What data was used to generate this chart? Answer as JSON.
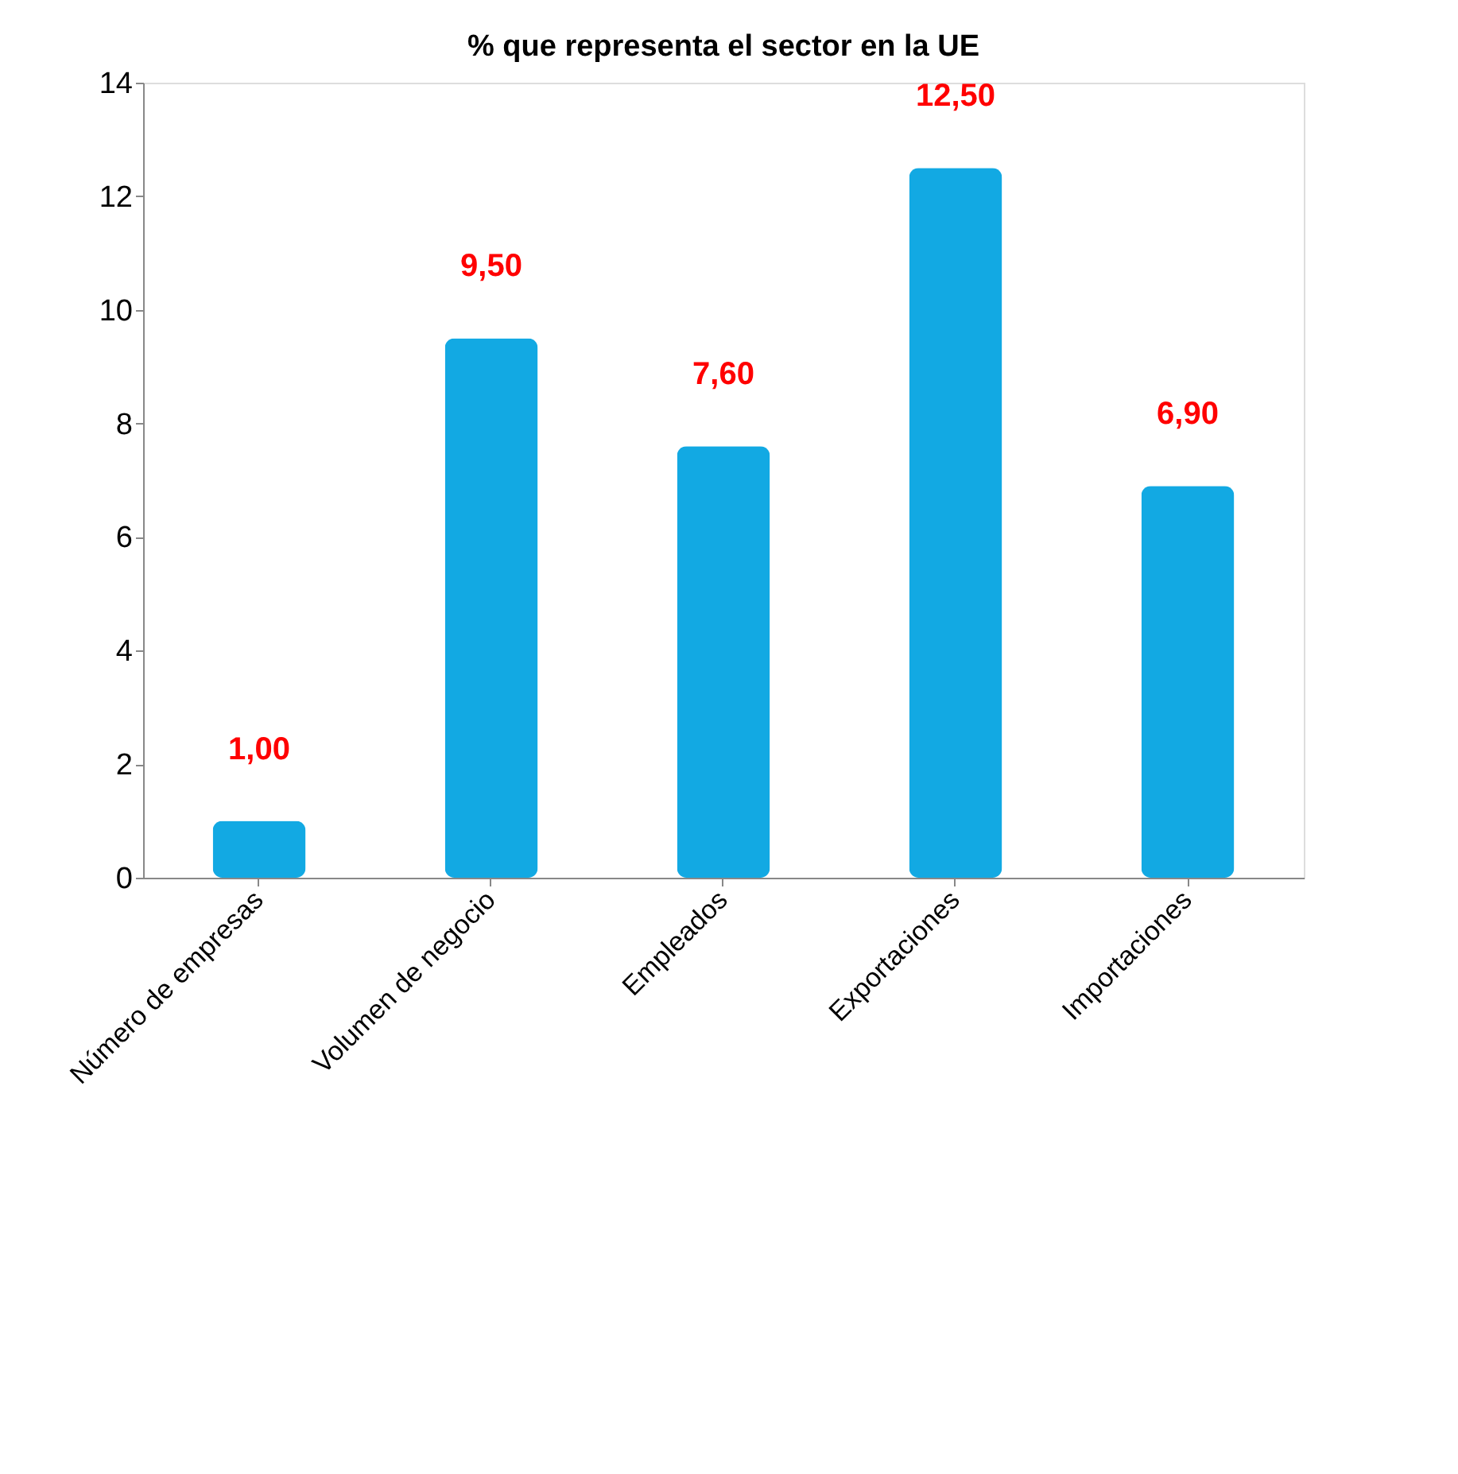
{
  "chart_data": {
    "type": "bar",
    "title": "% que representa el sector en la UE",
    "categories": [
      "Número de empresas",
      "Volumen de negocio",
      "Empleados",
      "Exportaciones",
      "Importaciones"
    ],
    "values": [
      1.0,
      9.5,
      7.6,
      12.5,
      6.9
    ],
    "value_labels": [
      "1,00",
      "9,50",
      "7,60",
      "12,50",
      "6,90"
    ],
    "color": "#12a9e3",
    "ylim": [
      0,
      14
    ],
    "yticks": [
      0,
      2,
      4,
      6,
      8,
      10,
      12,
      14
    ],
    "grid": false
  }
}
